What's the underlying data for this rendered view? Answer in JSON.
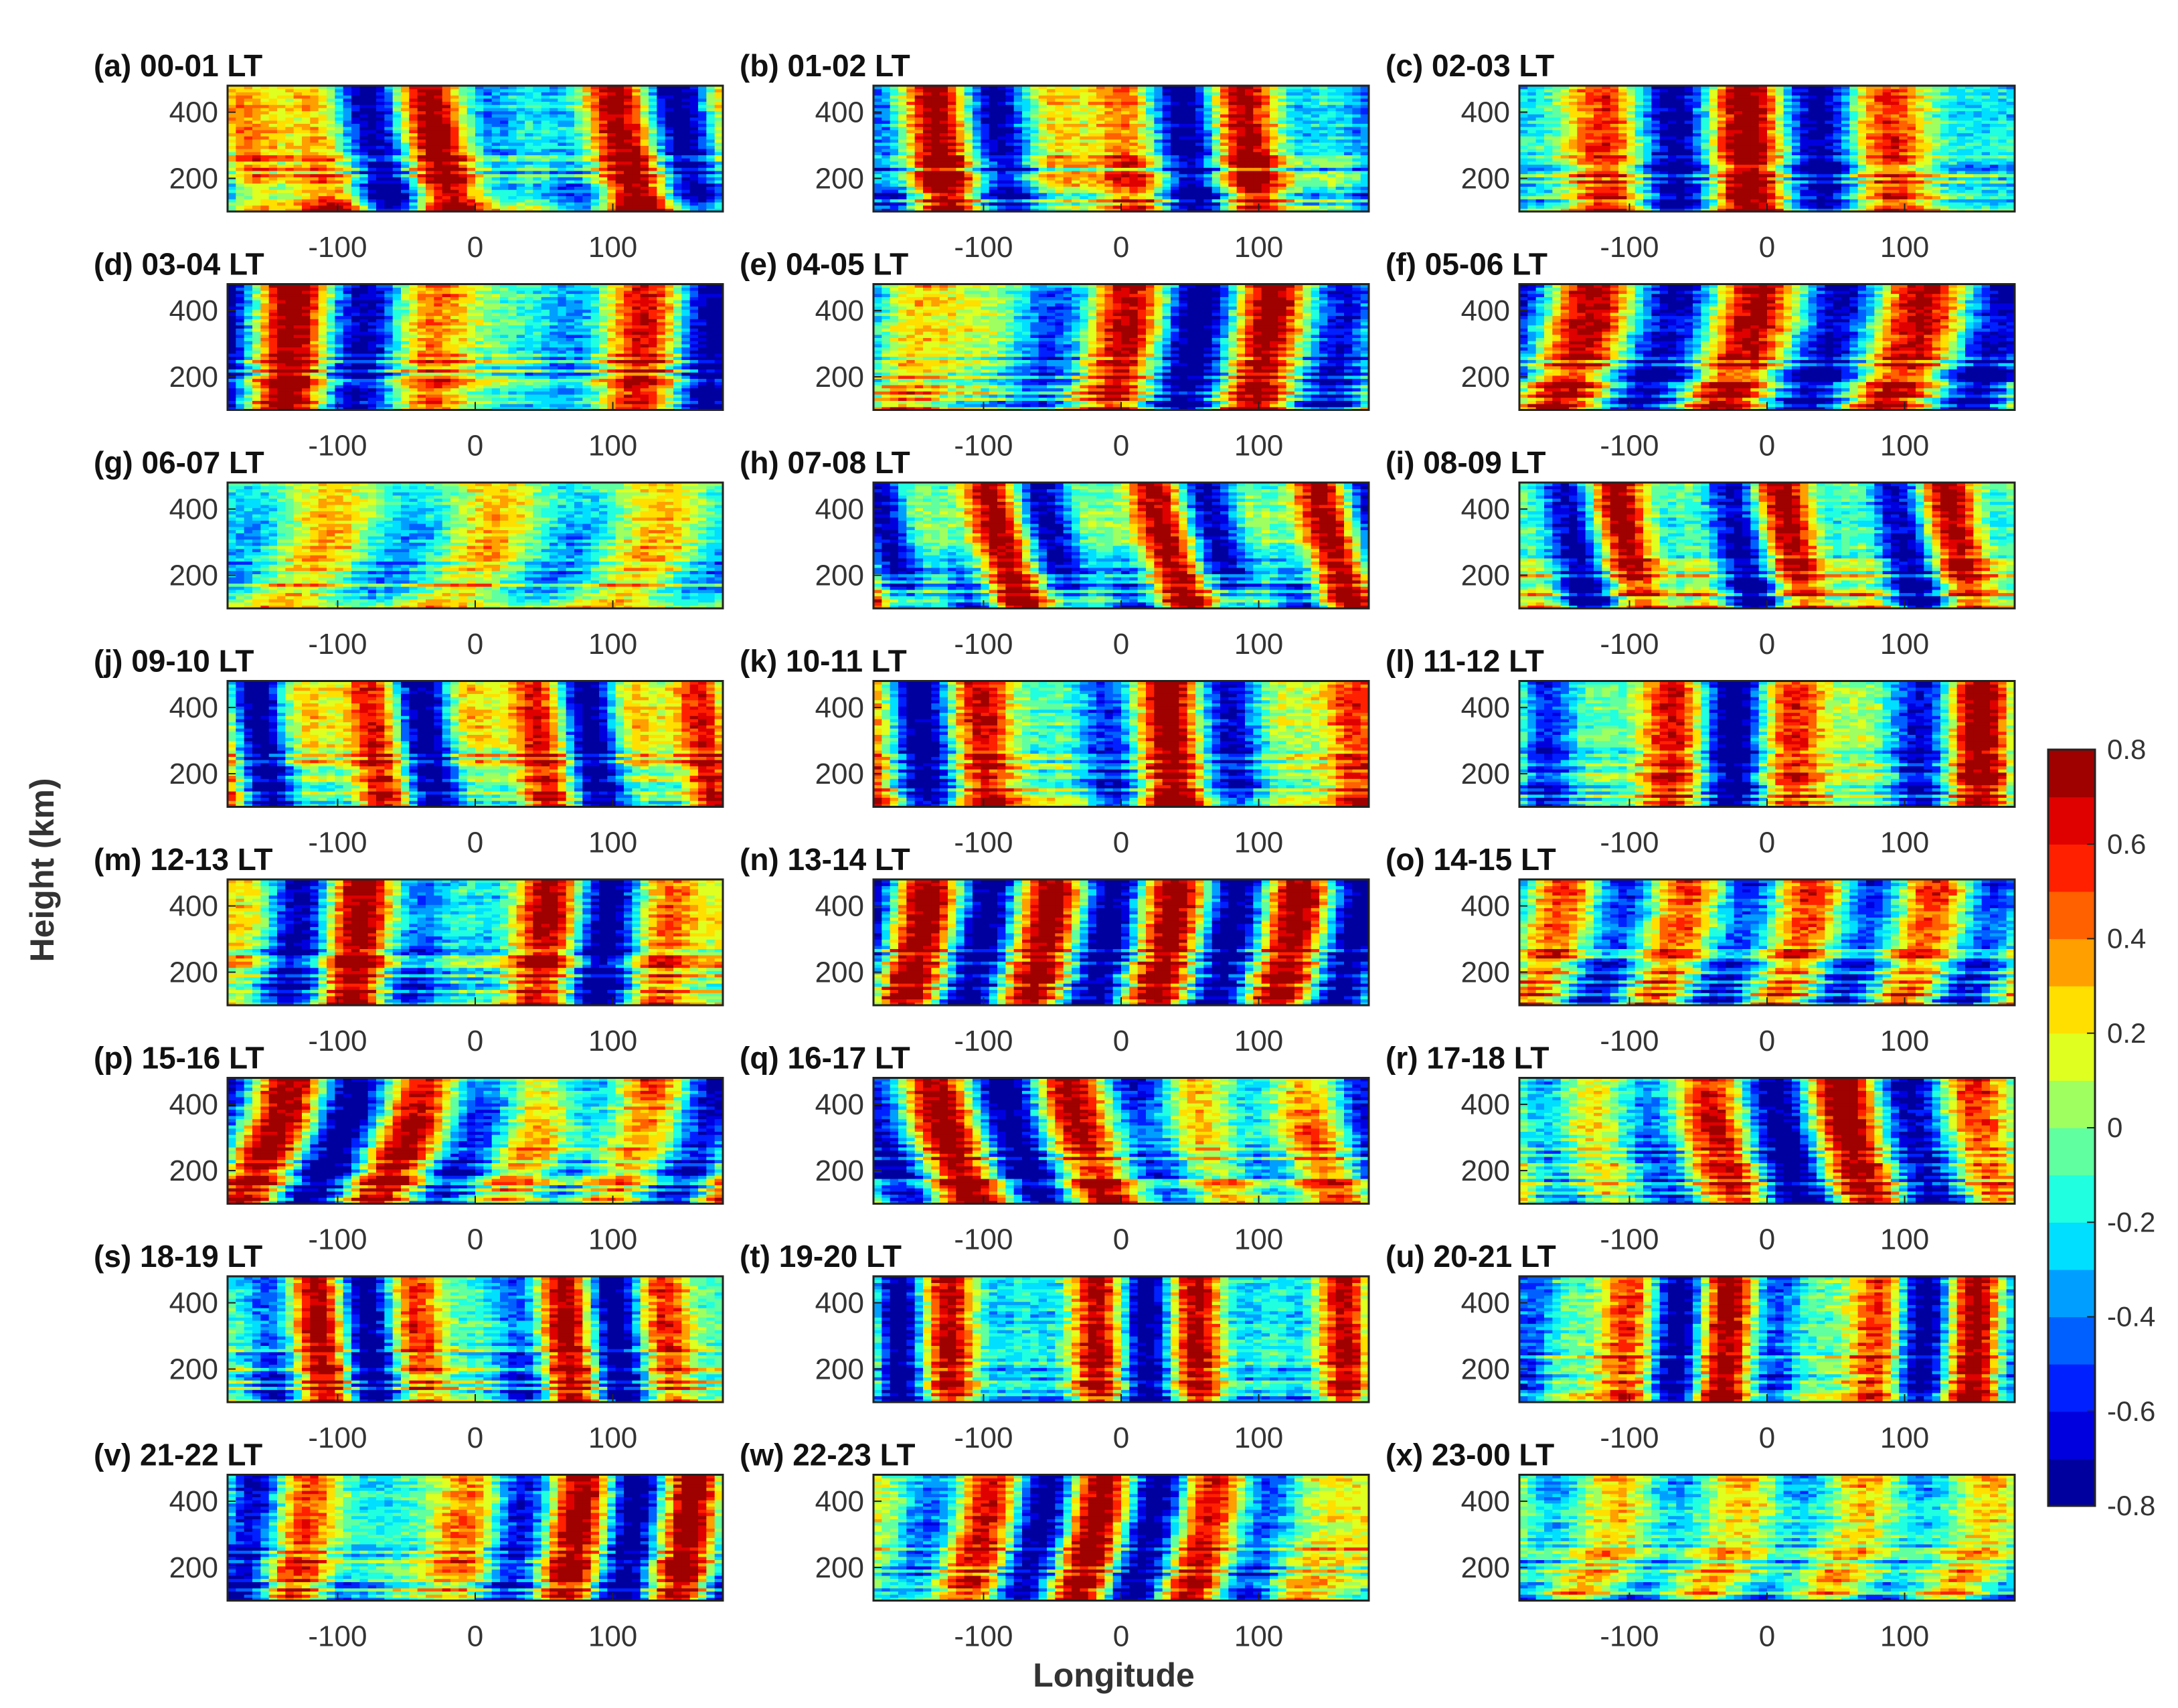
{
  "chart_data": {
    "type": "heatmap",
    "xlabel": "Longitude",
    "ylabel": "Height (km)",
    "xlim": [
      -180,
      180
    ],
    "ylim": [
      100,
      480
    ],
    "x_ticks": [
      "-100",
      "0",
      "100"
    ],
    "y_ticks": [
      "400",
      "200"
    ],
    "x_tick_values": [
      -100,
      0,
      100
    ],
    "y_tick_values": [
      400,
      200
    ],
    "grid": false,
    "colormap": "jet",
    "colorbar": {
      "range": [
        -0.8,
        0.8
      ],
      "ticks": [
        "0.8",
        "0.6",
        "0.4",
        "0.2",
        "0",
        "-0.2",
        "-0.4",
        "-0.6",
        "-0.8"
      ],
      "tick_values": [
        0.8,
        0.6,
        0.4,
        0.2,
        0,
        -0.2,
        -0.4,
        -0.6,
        -0.8
      ],
      "levels": 16,
      "placement": "right"
    },
    "panels": [
      {
        "title": "(a) 00-01 LT"
      },
      {
        "title": "(b) 01-02 LT"
      },
      {
        "title": "(c) 02-03 LT"
      },
      {
        "title": "(d) 03-04 LT"
      },
      {
        "title": "(e) 04-05 LT"
      },
      {
        "title": "(f) 05-06 LT"
      },
      {
        "title": "(g) 06-07 LT"
      },
      {
        "title": "(h) 07-08 LT"
      },
      {
        "title": "(i) 08-09 LT"
      },
      {
        "title": "(j) 09-10 LT"
      },
      {
        "title": "(k) 10-11 LT"
      },
      {
        "title": "(l) 11-12 LT"
      },
      {
        "title": "(m) 12-13 LT"
      },
      {
        "title": "(n) 13-14 LT"
      },
      {
        "title": "(o) 14-15 LT"
      },
      {
        "title": "(p) 15-16 LT"
      },
      {
        "title": "(q) 16-17 LT"
      },
      {
        "title": "(r) 17-18 LT"
      },
      {
        "title": "(s) 18-19 LT"
      },
      {
        "title": "(t) 19-20 LT"
      },
      {
        "title": "(u) 20-21 LT"
      },
      {
        "title": "(v) 21-22 LT"
      },
      {
        "title": "(w) 22-23 LT"
      },
      {
        "title": "(x) 23-00 LT"
      }
    ]
  }
}
